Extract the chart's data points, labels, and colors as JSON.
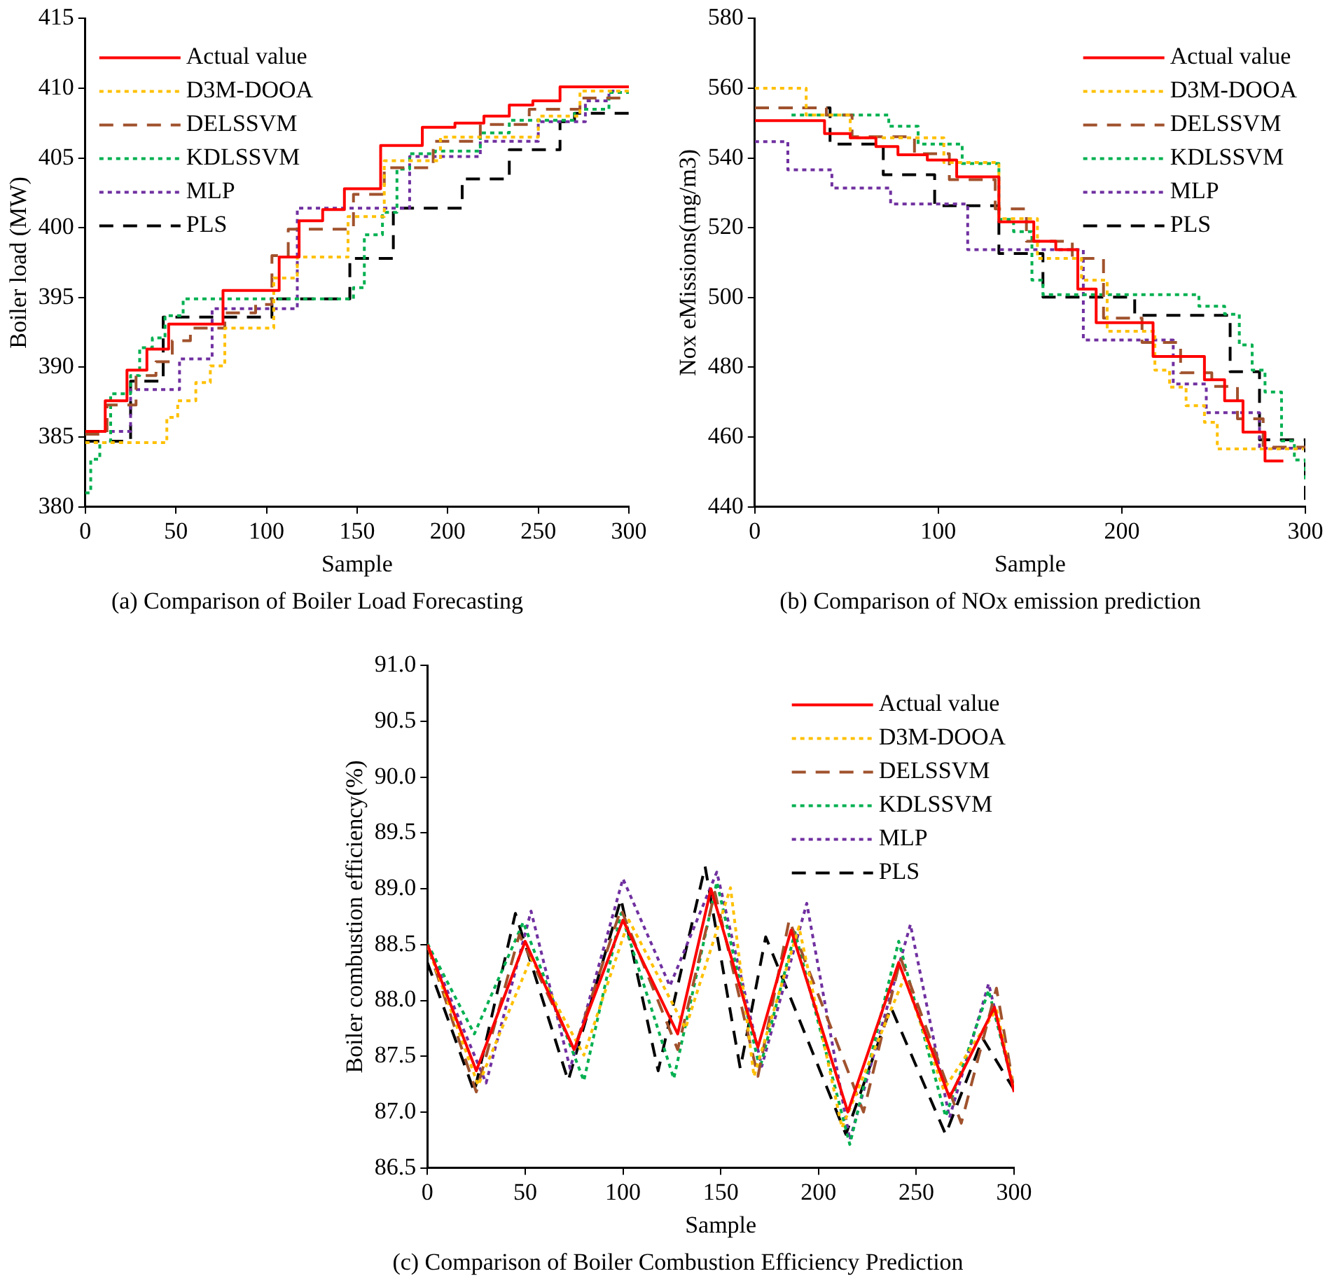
{
  "chart_data": [
    {
      "type": "step",
      "title": "(a) Comparison of Boiler Load Forecasting",
      "xlabel": "Sample",
      "ylabel": "Boiler load (MW)",
      "legend": "top left",
      "xlim": [
        0,
        300
      ],
      "xticks": [
        0,
        50,
        100,
        150,
        200,
        250,
        300
      ],
      "ylim": [
        380,
        415
      ],
      "yticks": [
        380,
        385,
        390,
        395,
        400,
        405,
        410,
        415
      ],
      "series": [
        {
          "name": "Actual value",
          "color": "#ff0000",
          "line_style": "solid",
          "x": [
            0,
            11,
            23,
            34,
            46,
            76,
            107,
            118,
            131,
            143,
            163,
            186,
            204,
            220,
            234,
            247,
            262,
            300
          ],
          "values": [
            385.4,
            387.6,
            389.8,
            391.3,
            393.1,
            395.5,
            397.9,
            400.5,
            401.3,
            402.8,
            405.9,
            407.2,
            407.5,
            408.0,
            408.8,
            409.1,
            410.1,
            410.1
          ]
        },
        {
          "name": "D3M-DOOA",
          "color": "#ffc000",
          "line_style": "dotted",
          "x": [
            0,
            45,
            51,
            61,
            69,
            77,
            104,
            117,
            145,
            165,
            196,
            250,
            273,
            300
          ],
          "values": [
            384.6,
            386.4,
            387.6,
            388.9,
            390.1,
            392.8,
            396.4,
            397.9,
            400.8,
            404.8,
            406.5,
            408.0,
            409.8,
            409.8
          ]
        },
        {
          "name": "DELSSVM",
          "color": "#a0522d",
          "line_style": "dashed",
          "x": [
            0,
            12,
            28,
            39,
            48,
            58,
            77,
            94,
            103,
            112,
            148,
            165,
            192,
            218,
            245,
            273,
            300
          ],
          "values": [
            385.2,
            387.3,
            389.4,
            390.4,
            391.9,
            392.8,
            393.9,
            394.5,
            398.0,
            399.9,
            402.4,
            404.3,
            406.2,
            407.4,
            408.5,
            409.3,
            409.3
          ]
        },
        {
          "name": "KDLSSVM",
          "color": "#00b050",
          "line_style": "dotted",
          "x": [
            0,
            3,
            8,
            14,
            25,
            30,
            37,
            44,
            54,
            148,
            154,
            164,
            172,
            179,
            193,
            218,
            234,
            270,
            289,
            300
          ],
          "values": [
            381.0,
            383.4,
            384.6,
            388.1,
            389.4,
            391.4,
            392.1,
            393.7,
            394.9,
            395.7,
            399.5,
            401.1,
            404.2,
            405.3,
            405.5,
            406.8,
            407.7,
            408.5,
            409.7,
            409.7
          ]
        },
        {
          "name": "MLP",
          "color": "#7030a0",
          "line_style": "dotted",
          "x": [
            0,
            25,
            52,
            70,
            117,
            179,
            218,
            250,
            276,
            289,
            292
          ],
          "values": [
            385.4,
            388.4,
            390.6,
            394.2,
            401.4,
            405.1,
            406.2,
            407.6,
            409.1,
            409.8,
            409.8
          ]
        },
        {
          "name": "PLS",
          "color": "#000000",
          "line_style": "dashed",
          "x": [
            0,
            25,
            43,
            103,
            146,
            170,
            208,
            234,
            262,
            270,
            300
          ],
          "values": [
            384.7,
            389.0,
            393.6,
            394.9,
            397.8,
            401.4,
            403.5,
            405.6,
            407.6,
            408.2,
            408.2
          ]
        }
      ]
    },
    {
      "type": "step",
      "title": "(b) Comparison of NOx emission prediction",
      "xlabel": "Sample",
      "ylabel": "Nox eMissions(mg/m3)",
      "legend": "top right",
      "xlim": [
        0,
        300
      ],
      "xticks": [
        0,
        100,
        200,
        300
      ],
      "ylim": [
        440,
        580
      ],
      "yticks": [
        440,
        460,
        480,
        500,
        520,
        540,
        560,
        580
      ],
      "series": [
        {
          "name": "Actual value",
          "color": "#ff0000",
          "line_style": "solid",
          "x": [
            0,
            38,
            52,
            66,
            78,
            94,
            110,
            133,
            152,
            164,
            176,
            186,
            217,
            245,
            256,
            266,
            278,
            288
          ],
          "values": [
            550.7,
            547.0,
            545.8,
            543.3,
            540.9,
            539.4,
            534.6,
            521.7,
            516.1,
            513.7,
            502.4,
            492.8,
            483.1,
            476.4,
            470.4,
            461.4,
            453.1,
            453.1
          ]
        },
        {
          "name": "D3M-DOOA",
          "color": "#ffc000",
          "line_style": "dotted",
          "x": [
            0,
            28,
            52,
            103,
            133,
            154,
            178,
            192,
            218,
            226,
            235,
            245,
            252,
            299
          ],
          "values": [
            560.0,
            552.3,
            545.8,
            538.7,
            522.6,
            511.2,
            505.0,
            490.3,
            479.2,
            474.3,
            469.0,
            464.2,
            456.6,
            456.6
          ]
        },
        {
          "name": "DELSSVM",
          "color": "#a0522d",
          "line_style": "dashed",
          "x": [
            0,
            39,
            53,
            87,
            106,
            131,
            148,
            173,
            190,
            211,
            232,
            249,
            263,
            277,
            300
          ],
          "values": [
            554.4,
            552.3,
            546.1,
            541.2,
            533.8,
            525.4,
            516.1,
            511.2,
            494.1,
            487.1,
            478.4,
            474.5,
            465.2,
            457.1,
            457.1
          ]
        },
        {
          "name": "KDLSSVM",
          "color": "#00b050",
          "line_style": "dotted",
          "x": [
            20,
            73,
            89,
            113,
            133,
            141,
            151,
            157,
            242,
            256,
            264,
            271,
            278,
            287,
            294,
            300
          ],
          "values": [
            552.3,
            549.1,
            544.0,
            538.4,
            522.4,
            518.9,
            505.0,
            500.8,
            497.5,
            495.2,
            486.4,
            479.2,
            472.9,
            458.9,
            453.4,
            447.1
          ]
        },
        {
          "name": "MLP",
          "color": "#7030a0",
          "line_style": "dotted",
          "x": [
            0,
            18,
            42,
            74,
            116,
            179,
            228,
            246,
            275,
            300
          ],
          "values": [
            544.7,
            536.6,
            531.4,
            526.8,
            513.7,
            487.8,
            475.2,
            467.0,
            456.8,
            456.8
          ]
        },
        {
          "name": "PLS",
          "color": "#000000",
          "line_style": "dashed",
          "x": [
            0,
            41,
            70,
            98,
            133,
            157,
            207,
            259,
            275,
            300
          ],
          "values": [
            554.4,
            544.0,
            535.2,
            526.3,
            512.6,
            500.1,
            494.9,
            478.7,
            459.2,
            440.0
          ]
        }
      ]
    },
    {
      "type": "line",
      "title": "(c) Comparison of Boiler Combustion Efficiency Prediction",
      "xlabel": "Sample",
      "ylabel": "Boiler combustion efficiency(%)",
      "legend": "top right",
      "xlim": [
        0,
        300
      ],
      "xticks": [
        0,
        50,
        100,
        150,
        200,
        250,
        300
      ],
      "ylim": [
        86.5,
        91
      ],
      "yticks": [
        86.5,
        {
          "value": 87,
          "label": "87.0"
        },
        87.5,
        {
          "value": 88,
          "label": "88.0"
        },
        88.5,
        {
          "value": 89,
          "label": "89.0"
        },
        89.5,
        {
          "value": 90,
          "label": "90.0"
        },
        90.5,
        {
          "value": 91,
          "label": "91.0"
        }
      ],
      "series": [
        {
          "name": "Actual value",
          "color": "#ff0000",
          "line_style": "solid",
          "x": [
            0,
            25,
            50,
            75,
            100,
            128,
            145,
            169,
            186,
            215,
            241,
            267,
            290,
            300
          ],
          "values": [
            88.5,
            87.37,
            88.53,
            87.56,
            88.72,
            87.7,
            89.0,
            87.58,
            88.63,
            87.0,
            88.34,
            87.13,
            87.94,
            87.18
          ]
        },
        {
          "name": "D3M-DOOA",
          "color": "#ffc000",
          "line_style": "dotted",
          "x": [
            0,
            26,
            53,
            80,
            103,
            132,
            155,
            167,
            190,
            212,
            244,
            264,
            291,
            300
          ],
          "values": [
            88.49,
            87.24,
            88.38,
            87.51,
            88.72,
            87.75,
            89.01,
            87.32,
            88.66,
            86.86,
            88.21,
            87.2,
            87.92,
            87.2
          ]
        },
        {
          "name": "DELSSVM",
          "color": "#a0522d",
          "line_style": "dashed",
          "x": [
            0,
            25,
            47,
            75,
            99,
            128,
            147,
            169,
            185,
            215,
            223,
            242,
            273,
            291,
            300
          ],
          "values": [
            88.49,
            87.18,
            88.59,
            87.56,
            88.82,
            87.56,
            88.97,
            87.32,
            88.72,
            87.37,
            87.0,
            88.38,
            86.9,
            88.11,
            87.2
          ]
        },
        {
          "name": "KDLSSVM",
          "color": "#00b050",
          "line_style": "dotted",
          "x": [
            0,
            24,
            49,
            80,
            99,
            126,
            148,
            170,
            188,
            216,
            241,
            265,
            287,
            300
          ],
          "values": [
            88.51,
            87.7,
            88.7,
            87.28,
            88.78,
            87.3,
            89.06,
            87.39,
            88.61,
            86.71,
            88.53,
            86.96,
            88.09,
            87.2
          ]
        },
        {
          "name": "MLP",
          "color": "#7030a0",
          "line_style": "dotted",
          "x": [
            0,
            30,
            53,
            73,
            100,
            124,
            148,
            171,
            194,
            216,
            247,
            267,
            287,
            300
          ],
          "values": [
            88.51,
            87.26,
            88.8,
            87.39,
            89.09,
            88.13,
            89.15,
            87.41,
            88.87,
            86.75,
            88.68,
            86.95,
            88.15,
            87.2
          ]
        },
        {
          "name": "PLS",
          "color": "#000000",
          "line_style": "dashed",
          "x": [
            0,
            24,
            45,
            72,
            99,
            118,
            142,
            160,
            173,
            214,
            237,
            265,
            284,
            300
          ],
          "values": [
            88.34,
            87.18,
            88.78,
            87.28,
            88.91,
            87.37,
            89.2,
            87.39,
            88.57,
            86.8,
            87.94,
            86.8,
            87.66,
            87.2
          ]
        }
      ]
    }
  ]
}
